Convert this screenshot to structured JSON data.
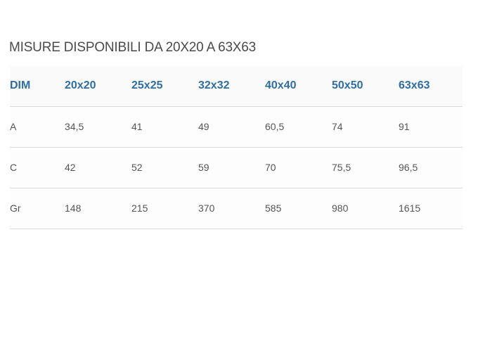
{
  "heading": "MISURE DISPONIBILI DA 20X20 A 63X63",
  "table": {
    "headers": [
      "DIM",
      "20x20",
      "25x25",
      "32x32",
      "40x40",
      "50x50",
      "63x63"
    ],
    "rows": [
      [
        "A",
        "34,5",
        "41",
        "49",
        "60,5",
        "74",
        "91"
      ],
      [
        "C",
        "42",
        "52",
        "59",
        "70",
        "75,5",
        "96,5"
      ],
      [
        "Gr",
        "148",
        "215",
        "370",
        "585",
        "980",
        "1615"
      ]
    ]
  },
  "colors": {
    "header_text": "#2f6ea3",
    "body_text": "#555555",
    "title_text": "#4a4a4a",
    "row_divider": "#d9d9d9"
  }
}
